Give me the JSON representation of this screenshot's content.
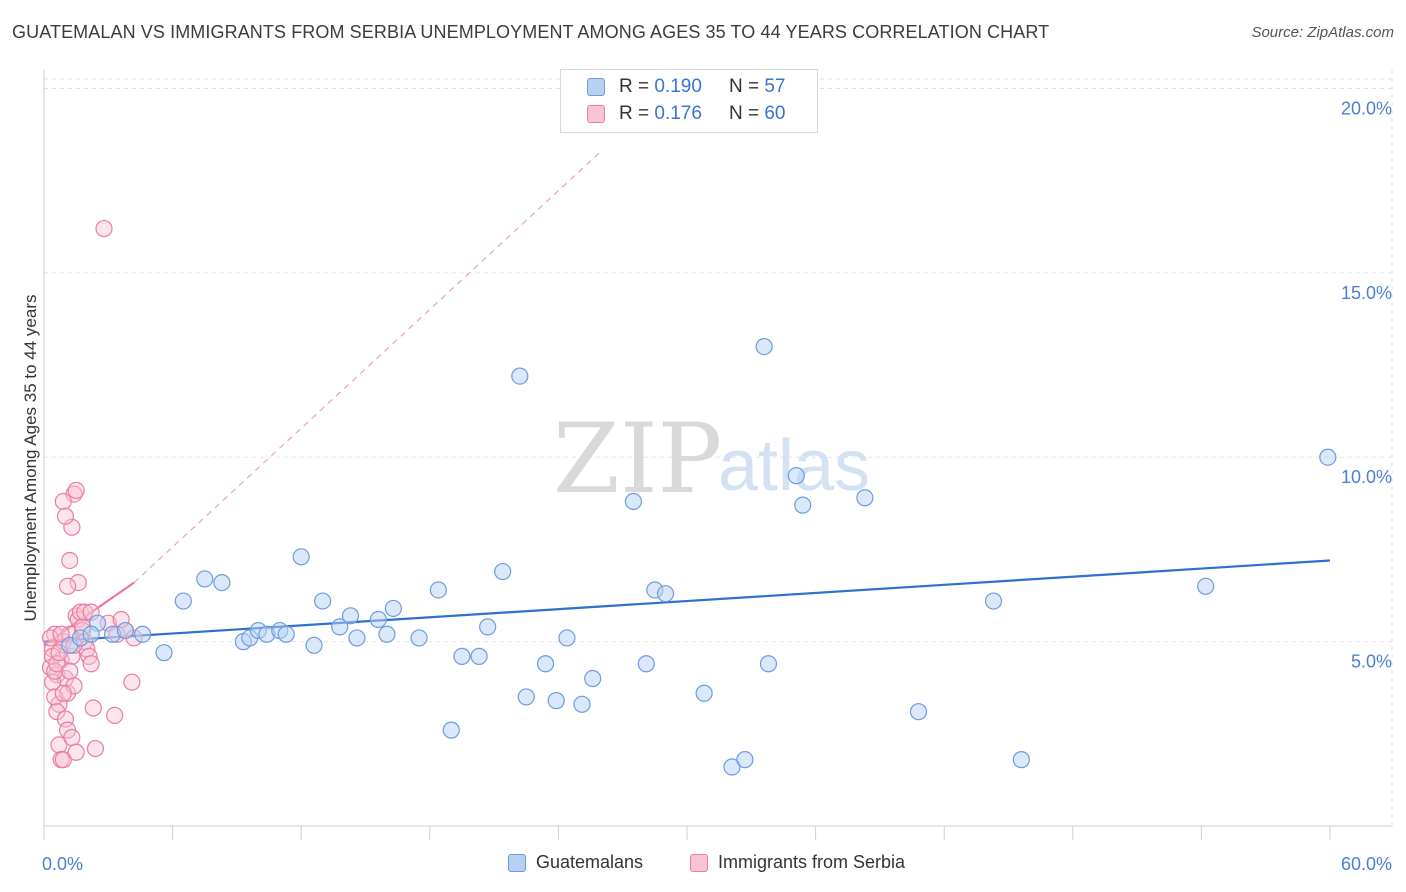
{
  "header": {
    "title": "GUATEMALAN VS IMMIGRANTS FROM SERBIA UNEMPLOYMENT AMONG AGES 35 TO 44 YEARS CORRELATION CHART",
    "source": "Source: ZipAtlas.com"
  },
  "watermark": {
    "zip": "ZIP",
    "atlas": "atlas"
  },
  "legend": {
    "rows": [
      {
        "r_label": "R =",
        "r_value": "0.190",
        "n_label": "N =",
        "n_value": "57"
      },
      {
        "r_label": "R =",
        "r_value": "0.176",
        "n_label": "N =",
        "n_value": "60"
      }
    ]
  },
  "colors": {
    "blue_fill": "#b8d1f3",
    "blue_stroke": "#6e9be0",
    "blue_line": "#2e6fcf",
    "pink_fill": "#f8c3d3",
    "pink_stroke": "#e87fa2",
    "pink_line": "#e8769c",
    "grid": "#e2e2e2",
    "tick_text": "#4a7fd4"
  },
  "chart_data": {
    "type": "scatter",
    "title": "GUATEMALAN VS IMMIGRANTS FROM SERBIA UNEMPLOYMENT AMONG AGES 35 TO 44 YEARS CORRELATION CHART",
    "xlabel": "",
    "ylabel": "Unemployment Among Ages 35 to 44 years",
    "xlim": [
      0,
      60
    ],
    "ylim": [
      0,
      20.5
    ],
    "x_tick_labels": [
      "0.0%",
      "60.0%"
    ],
    "y_ticks": [
      5,
      10,
      15,
      20
    ],
    "y_tick_labels": [
      "5.0%",
      "10.0%",
      "15.0%",
      "20.0%"
    ],
    "series": [
      {
        "name": "Guatemalans",
        "color": "blue",
        "points": [
          [
            1.2,
            4.9
          ],
          [
            1.7,
            5.1
          ],
          [
            2.5,
            5.5
          ],
          [
            3.2,
            5.2
          ],
          [
            4.6,
            5.2
          ],
          [
            5.6,
            4.7
          ],
          [
            6.5,
            6.1
          ],
          [
            8.3,
            6.6
          ],
          [
            9.3,
            5.0
          ],
          [
            9.6,
            5.1
          ],
          [
            10.0,
            5.3
          ],
          [
            10.4,
            5.2
          ],
          [
            11.0,
            5.3
          ],
          [
            11.3,
            5.2
          ],
          [
            12.0,
            7.3
          ],
          [
            12.6,
            4.9
          ],
          [
            13.0,
            6.1
          ],
          [
            13.8,
            5.4
          ],
          [
            14.3,
            5.7
          ],
          [
            14.6,
            5.1
          ],
          [
            15.6,
            5.6
          ],
          [
            16.3,
            5.9
          ],
          [
            17.5,
            5.1
          ],
          [
            18.4,
            6.4
          ],
          [
            19.0,
            2.6
          ],
          [
            19.5,
            4.6
          ],
          [
            20.3,
            4.6
          ],
          [
            20.7,
            5.4
          ],
          [
            21.4,
            6.9
          ],
          [
            22.2,
            12.2
          ],
          [
            22.5,
            3.5
          ],
          [
            23.4,
            4.4
          ],
          [
            23.9,
            3.4
          ],
          [
            24.4,
            5.1
          ],
          [
            25.1,
            3.3
          ],
          [
            25.6,
            4.0
          ],
          [
            27.5,
            8.8
          ],
          [
            28.1,
            4.4
          ],
          [
            28.5,
            6.4
          ],
          [
            29.0,
            6.3
          ],
          [
            30.8,
            3.6
          ],
          [
            32.1,
            1.6
          ],
          [
            32.7,
            1.8
          ],
          [
            33.6,
            13.0
          ],
          [
            33.8,
            4.4
          ],
          [
            35.1,
            9.5
          ],
          [
            35.4,
            8.7
          ],
          [
            38.3,
            8.9
          ],
          [
            40.8,
            3.1
          ],
          [
            44.3,
            6.1
          ],
          [
            45.6,
            1.8
          ],
          [
            54.2,
            6.5
          ],
          [
            59.9,
            10.0
          ],
          [
            2.2,
            5.2
          ],
          [
            3.8,
            5.3
          ],
          [
            7.5,
            6.7
          ],
          [
            16.0,
            5.2
          ]
        ],
        "trend": {
          "x": [
            0,
            60
          ],
          "y": [
            5.0,
            7.2
          ]
        }
      },
      {
        "name": "Immigrants from Serbia",
        "color": "pink",
        "points": [
          [
            0.3,
            4.3
          ],
          [
            0.4,
            4.8
          ],
          [
            0.5,
            5.2
          ],
          [
            0.6,
            4.1
          ],
          [
            0.7,
            3.3
          ],
          [
            0.8,
            4.5
          ],
          [
            0.9,
            5.0
          ],
          [
            1.0,
            4.0
          ],
          [
            1.1,
            3.6
          ],
          [
            1.2,
            5.2
          ],
          [
            1.3,
            4.6
          ],
          [
            1.4,
            3.8
          ],
          [
            0.4,
            3.9
          ],
          [
            0.5,
            3.5
          ],
          [
            0.6,
            3.1
          ],
          [
            0.7,
            2.2
          ],
          [
            0.8,
            1.8
          ],
          [
            0.9,
            1.8
          ],
          [
            1.0,
            2.9
          ],
          [
            1.1,
            2.6
          ],
          [
            1.2,
            7.2
          ],
          [
            1.3,
            8.1
          ],
          [
            1.4,
            9.0
          ],
          [
            1.5,
            9.1
          ],
          [
            1.6,
            6.6
          ],
          [
            1.1,
            6.5
          ],
          [
            0.9,
            8.8
          ],
          [
            1.0,
            8.4
          ],
          [
            1.5,
            5.7
          ],
          [
            1.6,
            5.6
          ],
          [
            1.7,
            5.8
          ],
          [
            1.8,
            5.3
          ],
          [
            1.9,
            5.0
          ],
          [
            2.0,
            4.8
          ],
          [
            2.1,
            4.6
          ],
          [
            2.2,
            4.4
          ],
          [
            2.3,
            3.2
          ],
          [
            2.4,
            2.1
          ],
          [
            1.3,
            2.4
          ],
          [
            1.5,
            2.0
          ],
          [
            1.8,
            5.4
          ],
          [
            1.9,
            5.8
          ],
          [
            0.3,
            5.1
          ],
          [
            0.4,
            4.6
          ],
          [
            0.5,
            4.2
          ],
          [
            0.6,
            4.4
          ],
          [
            0.7,
            4.7
          ],
          [
            0.8,
            5.2
          ],
          [
            1.2,
            4.2
          ],
          [
            1.4,
            4.9
          ],
          [
            2.2,
            5.8
          ],
          [
            3.0,
            5.5
          ],
          [
            3.4,
            5.2
          ],
          [
            3.8,
            5.3
          ],
          [
            3.3,
            3.0
          ],
          [
            3.6,
            5.6
          ],
          [
            4.1,
            3.9
          ],
          [
            4.2,
            5.1
          ],
          [
            2.8,
            16.2
          ],
          [
            0.9,
            3.6
          ]
        ],
        "trend": {
          "x": [
            0,
            4.2
          ],
          "y": [
            4.9,
            6.6
          ]
        },
        "trend_extension": {
          "x": [
            4.2,
            26.0
          ],
          "y": [
            6.6,
            18.3
          ]
        }
      }
    ],
    "legend": [
      "Guatemalans",
      "Immigrants from Serbia"
    ]
  }
}
